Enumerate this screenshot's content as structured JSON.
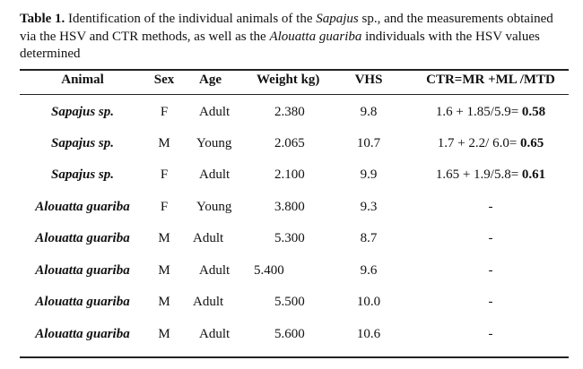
{
  "caption": {
    "label": "Table 1.",
    "text_a": " Identification of the individual animals of the ",
    "genus": "Sapajus",
    "text_b": " sp., and the measurements obtained via the HSV and CTR methods, as well as the ",
    "species": "Alouatta guariba",
    "text_c": " individuals with the HSV values determined"
  },
  "headers": {
    "animal": "Animal",
    "sex": "Sex",
    "age": "Age",
    "weight": "Weight kg)",
    "vhs": "VHS",
    "ctr": "CTR=MR +ML /MTD"
  },
  "rows": [
    {
      "animal": "Sapajus sp.",
      "sex": "F",
      "age": "Adult",
      "weight": "2.380",
      "vhs": "9.8",
      "ctr_formula": "1.6 + 1.85/5.9= ",
      "ctr_value": "0.58"
    },
    {
      "animal": "Sapajus sp.",
      "sex": "M",
      "age": "Young",
      "weight": "2.065",
      "vhs": "10.7",
      "ctr_formula": "1.7 + 2.2/ 6.0= ",
      "ctr_value": "0.65"
    },
    {
      "animal": "Sapajus sp.",
      "sex": "F",
      "age": "Adult",
      "weight": "2.100",
      "vhs": "9.9",
      "ctr_formula": "1.65 + 1.9/5.8= ",
      "ctr_value": "0.61"
    },
    {
      "animal": "Alouatta guariba",
      "sex": "F",
      "age": "Young",
      "weight": "3.800",
      "vhs": "9.3",
      "ctr_formula": "-",
      "ctr_value": ""
    },
    {
      "animal": "Alouatta guariba",
      "sex": "M",
      "age": "Adult",
      "weight": "5.300",
      "vhs": "8.7",
      "ctr_formula": "-",
      "ctr_value": ""
    },
    {
      "animal": "Alouatta guariba",
      "sex": "M",
      "age": "Adult",
      "weight": "5.400",
      "vhs": "9.6",
      "ctr_formula": "-",
      "ctr_value": ""
    },
    {
      "animal": "Alouatta guariba",
      "sex": "M",
      "age": "Adult",
      "weight": "5.500",
      "vhs": "10.0",
      "ctr_formula": "-",
      "ctr_value": ""
    },
    {
      "animal": "Alouatta guariba",
      "sex": "M",
      "age": "Adult",
      "weight": "5.600",
      "vhs": "10.6",
      "ctr_formula": "-",
      "ctr_value": ""
    }
  ]
}
